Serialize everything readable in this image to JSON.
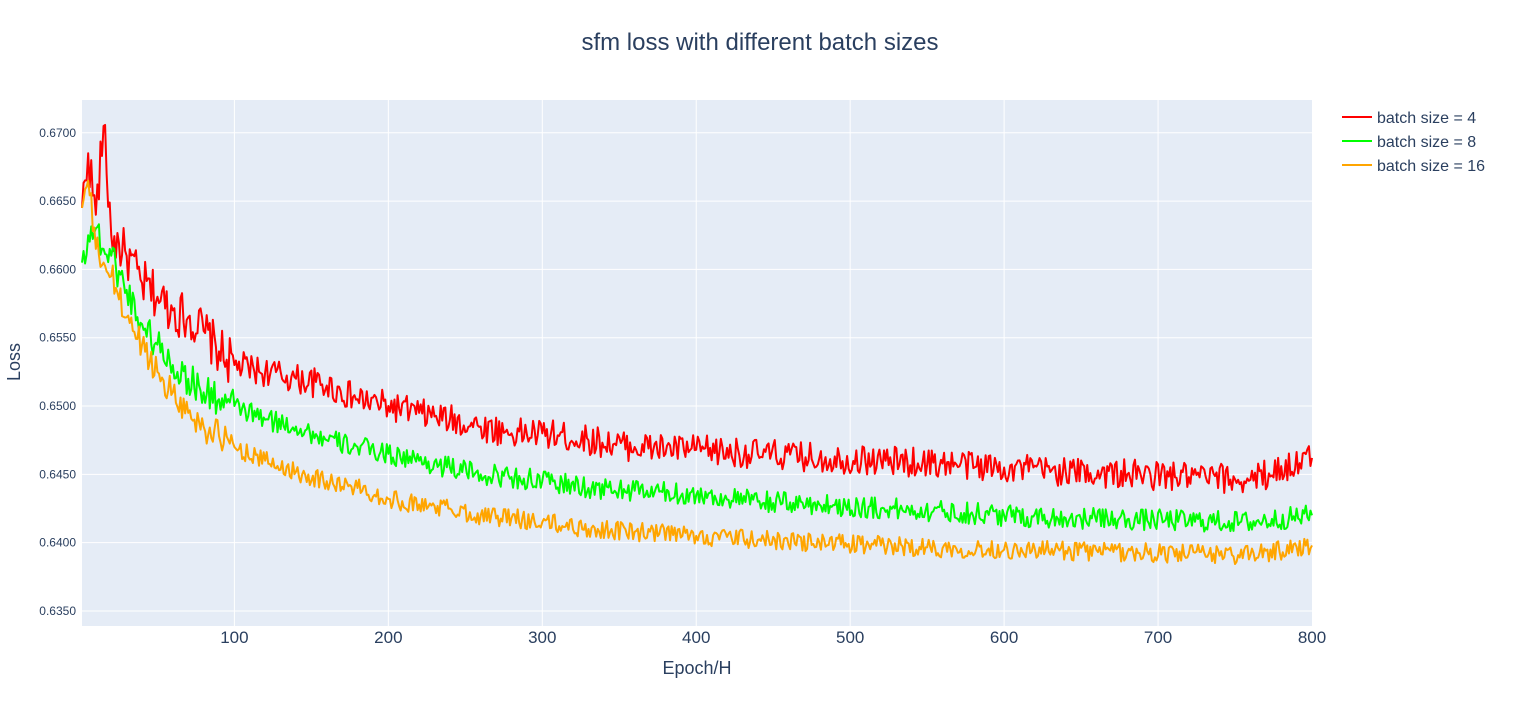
{
  "chart_data": {
    "type": "line",
    "title": "sfm loss with different batch sizes",
    "xlabel": "Epoch/H",
    "ylabel": "Loss",
    "xlim": [
      1,
      800
    ],
    "ylim": [
      0.6339,
      0.6724
    ],
    "xticks": [
      100,
      200,
      300,
      400,
      500,
      600,
      700,
      800
    ],
    "yticks": [
      0.635,
      0.64,
      0.645,
      0.65,
      0.655,
      0.66,
      0.665,
      0.67
    ],
    "ytick_labels": [
      "0.6350",
      "0.6400",
      "0.6450",
      "0.6500",
      "0.6550",
      "0.6600",
      "0.6650",
      "0.6700"
    ],
    "grid": true,
    "legend_position": "top-right, outside plot",
    "plot_background": "#e5ecf6",
    "series": [
      {
        "name": "batch size = 4",
        "color": "#ff0000",
        "x": [
          1,
          5,
          10,
          15,
          20,
          30,
          40,
          50,
          60,
          70,
          80,
          90,
          100,
          120,
          140,
          160,
          180,
          200,
          220,
          240,
          260,
          280,
          300,
          330,
          360,
          400,
          440,
          480,
          520,
          560,
          600,
          640,
          680,
          720,
          760,
          800
        ],
        "values": [
          0.6645,
          0.6685,
          0.664,
          0.6705,
          0.6625,
          0.661,
          0.659,
          0.658,
          0.657,
          0.6565,
          0.6555,
          0.654,
          0.653,
          0.6525,
          0.652,
          0.6515,
          0.6505,
          0.65,
          0.6495,
          0.649,
          0.6485,
          0.648,
          0.648,
          0.6475,
          0.647,
          0.6468,
          0.6465,
          0.6462,
          0.646,
          0.6458,
          0.6455,
          0.6452,
          0.645,
          0.6448,
          0.6446,
          0.6462
        ]
      },
      {
        "name": "batch size = 8",
        "color": "#00ff00",
        "x": [
          1,
          5,
          10,
          15,
          20,
          30,
          40,
          50,
          60,
          70,
          80,
          90,
          100,
          120,
          140,
          160,
          180,
          200,
          220,
          240,
          260,
          280,
          300,
          330,
          360,
          400,
          440,
          480,
          520,
          560,
          600,
          640,
          680,
          720,
          760,
          800
        ],
        "values": [
          0.6605,
          0.6625,
          0.663,
          0.6615,
          0.661,
          0.6585,
          0.656,
          0.6545,
          0.653,
          0.652,
          0.651,
          0.6505,
          0.65,
          0.649,
          0.6485,
          0.6475,
          0.647,
          0.6465,
          0.646,
          0.6455,
          0.645,
          0.6448,
          0.6445,
          0.644,
          0.6438,
          0.6435,
          0.643,
          0.6428,
          0.6425,
          0.6423,
          0.642,
          0.6418,
          0.6417,
          0.6416,
          0.6415,
          0.642
        ]
      },
      {
        "name": "batch size = 16",
        "color": "#ffa500",
        "x": [
          1,
          5,
          10,
          15,
          20,
          30,
          40,
          50,
          60,
          70,
          80,
          90,
          100,
          120,
          140,
          160,
          180,
          200,
          220,
          240,
          260,
          280,
          300,
          330,
          360,
          400,
          440,
          480,
          520,
          560,
          600,
          640,
          680,
          720,
          760,
          800
        ],
        "values": [
          0.6645,
          0.6665,
          0.6615,
          0.6605,
          0.6595,
          0.6565,
          0.6545,
          0.6525,
          0.651,
          0.6495,
          0.6485,
          0.6478,
          0.647,
          0.646,
          0.6452,
          0.6445,
          0.644,
          0.6432,
          0.6428,
          0.6425,
          0.642,
          0.6418,
          0.6415,
          0.641,
          0.6408,
          0.6405,
          0.6402,
          0.64,
          0.6398,
          0.6396,
          0.6395,
          0.6394,
          0.6393,
          0.6392,
          0.6391,
          0.6398
        ]
      }
    ]
  }
}
